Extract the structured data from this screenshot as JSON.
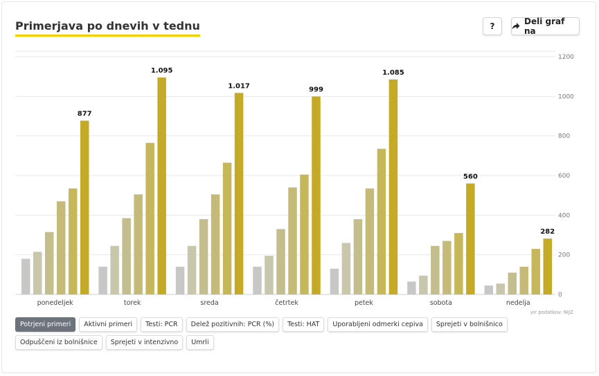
{
  "header": {
    "title": "Primerjava po dnevih v tednu",
    "help_label": "?",
    "share_label": "Deli graf na"
  },
  "source": "vir podatkov: NIJZ",
  "tabs": [
    "Potrjeni primeri",
    "Aktivni primeri",
    "Testi: PCR",
    "Delež pozitivnih: PCR (%)",
    "Testi: HAT",
    "Uporabljeni odmerki cepiva",
    "Sprejeti v bolnišnico",
    "Odpuščeni iz bolnišnice",
    "Sprejeti v intenzivno",
    "Umrli"
  ],
  "active_tab": 0,
  "chart_data": {
    "type": "bar",
    "categories": [
      "ponedeljek",
      "torek",
      "sreda",
      "četrtek",
      "petek",
      "sobota",
      "nedelja"
    ],
    "series": [
      {
        "color": "#c7c7c5",
        "values": [
          180,
          140,
          140,
          140,
          130,
          65,
          45
        ]
      },
      {
        "color": "#c8c6ab",
        "values": [
          215,
          245,
          245,
          195,
          260,
          95,
          55
        ]
      },
      {
        "color": "#c4bd8e",
        "values": [
          315,
          385,
          380,
          330,
          380,
          245,
          110
        ]
      },
      {
        "color": "#c5ba78",
        "values": [
          470,
          505,
          505,
          540,
          535,
          270,
          140
        ]
      },
      {
        "color": "#c7b75b",
        "values": [
          535,
          765,
          665,
          605,
          735,
          310,
          230
        ]
      },
      {
        "color": "#c4aa26",
        "values": [
          877,
          1095,
          1017,
          999,
          1085,
          560,
          282
        ]
      }
    ],
    "data_labels": [
      "877",
      "1.095",
      "1.017",
      "999",
      "1.085",
      "560",
      "282"
    ],
    "yticks": [
      "0",
      "200",
      "400",
      "600",
      "800",
      "1000",
      "1200"
    ],
    "ylim": [
      0,
      1200
    ],
    "grid": true,
    "y_axis_side": "right"
  }
}
